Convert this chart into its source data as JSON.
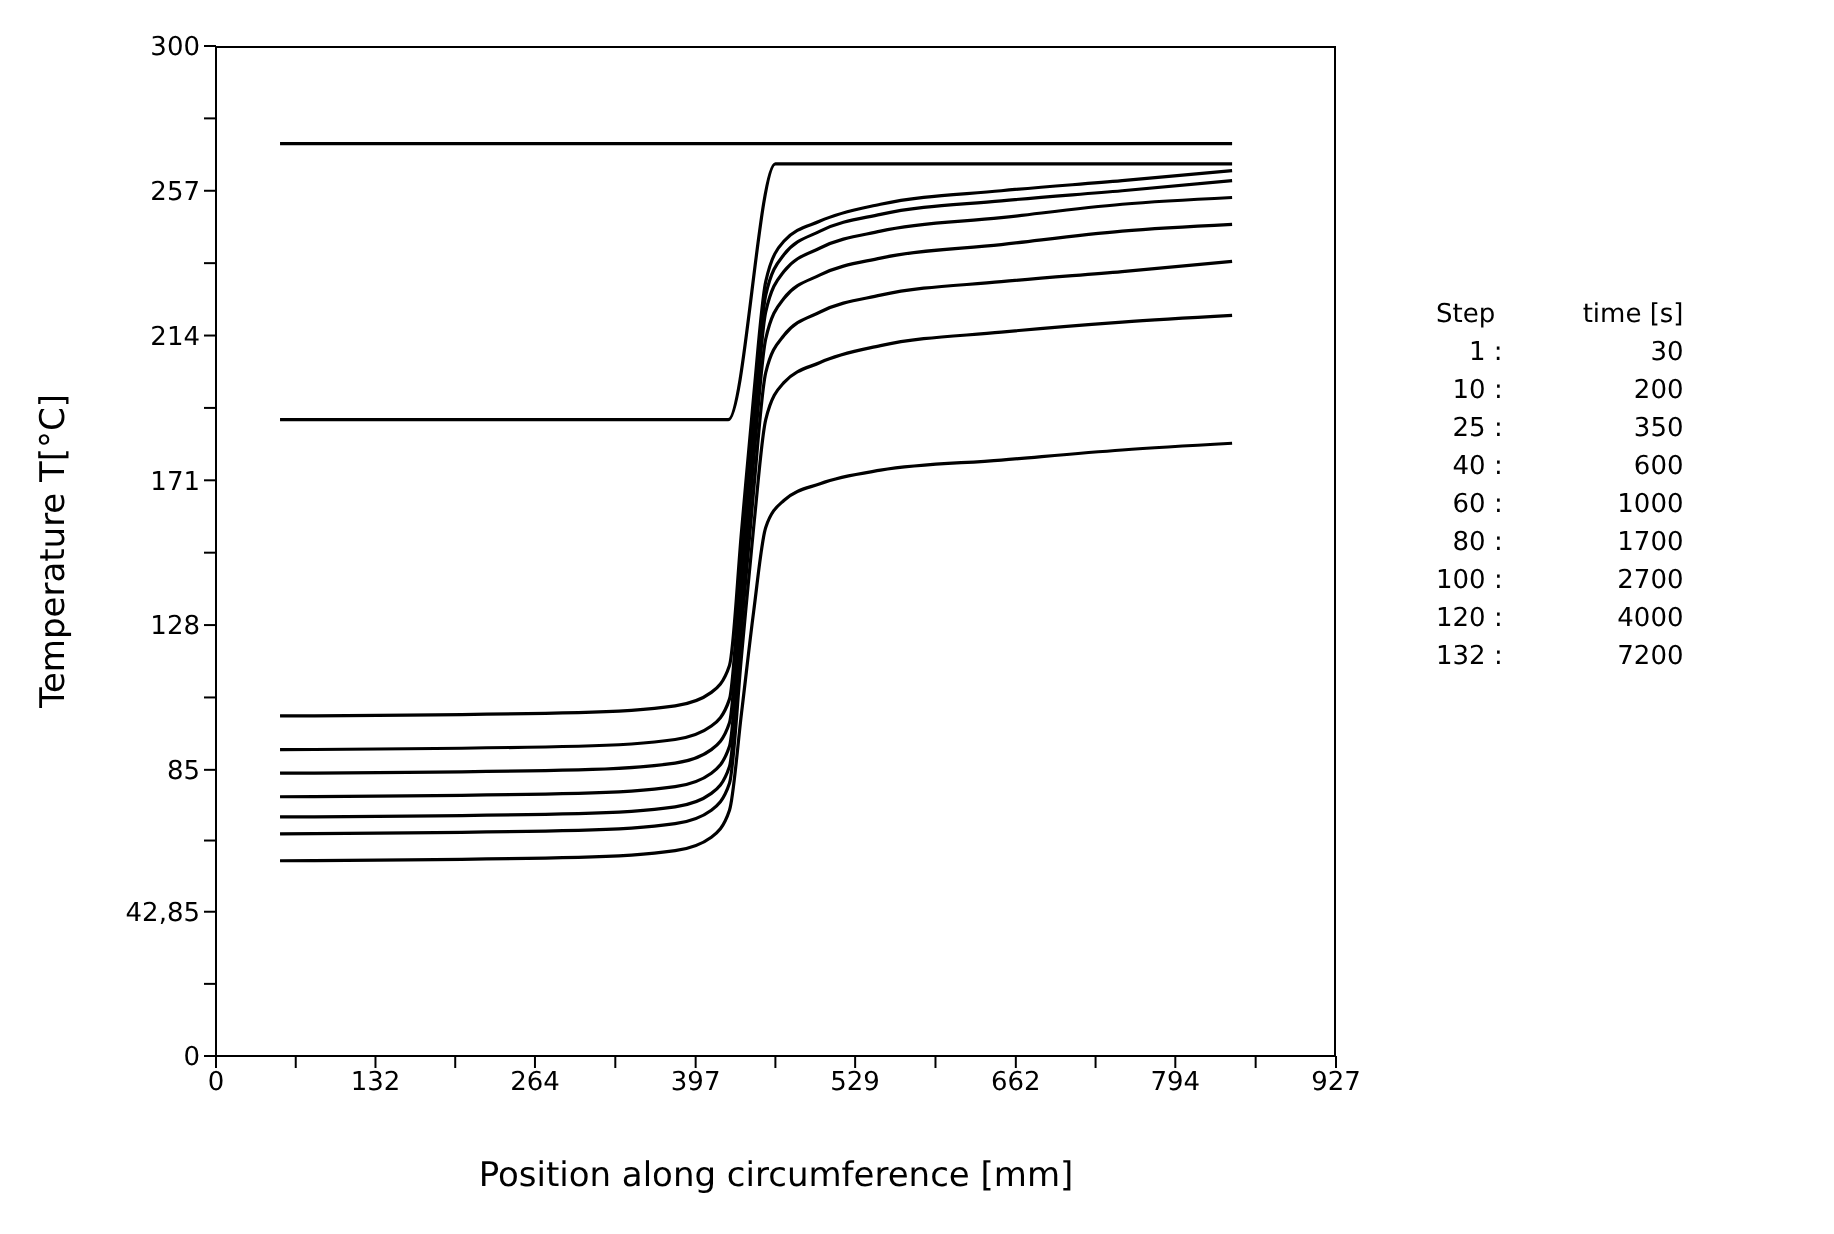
{
  "chart_data": {
    "type": "line",
    "xlabel": "Position along circumference [mm]",
    "ylabel": "Temperature T[°C]",
    "xlim": [
      0,
      927
    ],
    "ylim": [
      0,
      300
    ],
    "xticks": [
      0,
      {
        "value": 66,
        "label": null
      },
      132,
      {
        "value": 198,
        "label": null
      },
      264,
      {
        "value": 330.5,
        "label": null
      },
      397,
      {
        "value": 463,
        "label": null
      },
      529,
      {
        "value": 595.5,
        "label": null
      },
      662,
      {
        "value": 728,
        "label": null
      },
      794,
      {
        "value": 860.5,
        "label": null
      },
      927
    ],
    "yticks": [
      0,
      {
        "value": 21.425,
        "label": null
      },
      {
        "value": 42.85,
        "label": "42,85"
      },
      {
        "value": 64,
        "label": null
      },
      85,
      {
        "value": 106.5,
        "label": null
      },
      128,
      {
        "value": 149.5,
        "label": null
      },
      171,
      {
        "value": 192.5,
        "label": null
      },
      214,
      {
        "value": 235.5,
        "label": null
      },
      257,
      {
        "value": 278.5,
        "label": null
      },
      300
    ],
    "grid": false,
    "marker": "none",
    "line_style": "solid",
    "series": [
      {
        "color": "#000000",
        "x": [
          53,
          841
        ],
        "values": [
          271,
          271
        ]
      },
      {
        "color": "#000000",
        "x": [
          53,
          424,
          463,
          841
        ],
        "values": [
          189,
          189,
          265,
          265
        ]
      },
      {
        "color": "#000000",
        "x": [
          53,
          300,
          380,
          410,
          425,
          435,
          445,
          455,
          470,
          500,
          550,
          650,
          750,
          841
        ],
        "values": [
          101,
          102,
          104,
          108,
          116,
          156,
          196,
          230,
          242,
          248,
          253,
          257,
          260,
          263
        ]
      },
      {
        "color": "#000000",
        "x": [
          53,
          300,
          380,
          410,
          425,
          435,
          445,
          455,
          470,
          500,
          550,
          650,
          750,
          841
        ],
        "values": [
          91,
          92,
          94,
          98,
          106,
          148,
          190,
          226,
          238,
          245,
          250,
          254,
          257,
          260
        ]
      },
      {
        "color": "#000000",
        "x": [
          53,
          300,
          380,
          410,
          425,
          435,
          445,
          455,
          470,
          500,
          550,
          650,
          750,
          841
        ],
        "values": [
          84,
          85,
          87,
          91,
          99,
          142,
          184,
          221,
          233,
          240,
          245,
          249,
          253,
          255
        ]
      },
      {
        "color": "#000000",
        "x": [
          53,
          300,
          380,
          410,
          425,
          435,
          445,
          455,
          470,
          500,
          550,
          650,
          750,
          841
        ],
        "values": [
          77,
          78,
          80,
          84,
          92,
          134,
          177,
          213,
          225,
          232,
          237,
          241,
          245,
          247
        ]
      },
      {
        "color": "#000000",
        "x": [
          53,
          300,
          380,
          410,
          425,
          435,
          445,
          455,
          470,
          500,
          550,
          650,
          750,
          841
        ],
        "values": [
          71,
          72,
          74,
          78,
          86,
          127,
          168,
          203,
          214,
          221,
          226,
          230,
          233,
          236
        ]
      },
      {
        "color": "#000000",
        "x": [
          53,
          300,
          380,
          410,
          425,
          435,
          445,
          455,
          470,
          500,
          550,
          650,
          750,
          841
        ],
        "values": [
          66,
          67,
          69,
          73,
          81,
          119,
          157,
          189,
          200,
          206,
          211,
          215,
          218,
          220
        ]
      },
      {
        "color": "#000000",
        "x": [
          53,
          300,
          380,
          410,
          425,
          435,
          445,
          455,
          470,
          500,
          550,
          650,
          750,
          841
        ],
        "values": [
          58,
          59,
          61,
          65,
          73,
          102,
          132,
          157,
          165,
          170,
          174,
          177,
          180,
          182
        ]
      }
    ],
    "annotations": [
      "Step",
      "time [s]",
      "1 :",
      "30",
      "10 :",
      "200",
      "25 :",
      "350",
      "40 :",
      "600",
      "60 :",
      "1000",
      "80 :",
      "1700",
      "100 :",
      "2700",
      "120 :",
      "4000",
      "132 :",
      "7200"
    ]
  }
}
